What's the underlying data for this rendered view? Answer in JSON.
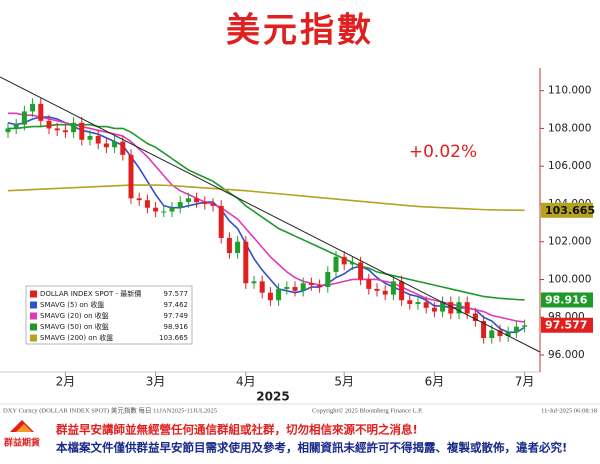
{
  "chart_data": {
    "type": "candlestick",
    "title": "美元指數",
    "annotation": "+0.02%",
    "year_label": "2025",
    "categories": [
      null,
      null,
      null,
      null,
      null,
      null,
      null,
      "2月",
      null,
      null,
      null,
      null,
      null,
      null,
      null,
      null,
      null,
      null,
      "3月",
      null,
      null,
      null,
      null,
      null,
      null,
      null,
      null,
      null,
      null,
      "4月",
      null,
      null,
      null,
      null,
      null,
      null,
      null,
      null,
      null,
      null,
      null,
      "5月",
      null,
      null,
      null,
      null,
      null,
      null,
      null,
      null,
      null,
      null,
      "6月",
      null,
      null,
      null,
      null,
      null,
      null,
      null,
      null,
      null,
      null,
      "7月"
    ],
    "price": {
      "name": "DOLLAR INDEX SPOT - 最新價",
      "color": "#e0201f",
      "up_color": "#1e9e2a",
      "down_color": "#e0201f",
      "open": [
        107.8,
        108.0,
        108.2,
        108.9,
        109.3,
        108.4,
        108.0,
        107.9,
        107.8,
        108.3,
        107.4,
        107.6,
        107.2,
        107.0,
        107.3,
        106.6,
        104.3,
        104.2,
        103.8,
        103.6,
        103.6,
        103.8,
        104.1,
        104.3,
        104.1,
        104.0,
        103.9,
        102.2,
        101.4,
        102.0,
        99.8,
        99.9,
        99.3,
        98.9,
        99.5,
        99.6,
        99.4,
        99.8,
        99.7,
        99.6,
        100.4,
        101.2,
        100.8,
        100.9,
        100.0,
        99.5,
        99.4,
        99.2,
        99.9,
        98.9,
        98.7,
        98.8,
        98.5,
        98.3,
        98.8,
        98.2,
        98.8,
        98.2,
        97.8,
        96.9,
        97.3,
        97.0,
        97.2,
        97.5
      ],
      "high": [
        108.3,
        108.5,
        109.2,
        109.6,
        109.6,
        108.7,
        108.3,
        108.2,
        108.6,
        108.6,
        107.9,
        107.9,
        107.5,
        107.6,
        107.6,
        106.9,
        104.6,
        104.5,
        104.1,
        103.9,
        104.1,
        104.4,
        104.6,
        104.6,
        104.4,
        104.3,
        104.2,
        102.5,
        102.3,
        102.3,
        100.2,
        100.2,
        99.6,
        99.8,
        99.9,
        99.9,
        100.1,
        100.1,
        100.0,
        100.7,
        101.5,
        101.5,
        101.2,
        101.2,
        100.3,
        99.8,
        99.7,
        100.2,
        100.2,
        99.2,
        99.1,
        99.1,
        98.8,
        99.1,
        99.1,
        99.1,
        99.1,
        98.5,
        98.1,
        97.6,
        97.6,
        97.5,
        97.8,
        97.88
      ],
      "low": [
        107.5,
        107.7,
        107.9,
        108.6,
        108.1,
        107.7,
        107.6,
        107.5,
        107.5,
        107.1,
        107.1,
        106.9,
        106.7,
        106.7,
        106.3,
        104.0,
        103.9,
        103.5,
        103.3,
        103.3,
        103.3,
        103.5,
        103.8,
        103.8,
        103.7,
        103.6,
        101.9,
        101.1,
        101.1,
        99.5,
        99.5,
        99.0,
        98.6,
        98.6,
        99.2,
        99.1,
        99.1,
        99.4,
        99.3,
        99.3,
        100.1,
        100.5,
        100.5,
        99.7,
        99.2,
        99.1,
        98.9,
        98.9,
        98.6,
        98.4,
        98.4,
        98.2,
        98.0,
        98.0,
        97.9,
        97.9,
        97.9,
        97.5,
        96.6,
        96.6,
        96.7,
        96.7,
        96.9,
        97.2
      ],
      "close": [
        108.0,
        108.2,
        108.9,
        109.3,
        108.4,
        108.0,
        107.9,
        107.8,
        108.3,
        107.4,
        107.6,
        107.2,
        107.0,
        107.3,
        106.6,
        104.3,
        104.2,
        103.8,
        103.6,
        103.6,
        103.8,
        104.1,
        104.3,
        104.1,
        104.0,
        103.9,
        102.2,
        101.4,
        102.0,
        99.8,
        99.9,
        99.3,
        98.9,
        99.5,
        99.6,
        99.4,
        99.8,
        99.7,
        99.6,
        100.4,
        101.2,
        100.8,
        100.9,
        100.0,
        99.5,
        99.4,
        99.2,
        99.9,
        98.9,
        98.7,
        98.8,
        98.5,
        98.3,
        98.8,
        98.2,
        98.8,
        98.2,
        97.8,
        96.9,
        97.3,
        97.0,
        97.2,
        97.5,
        97.577
      ]
    },
    "series": [
      {
        "name": "SMAVG (5)  on 收盤",
        "color": "#2f4fd0",
        "values": [
          108.3,
          108.2,
          108.3,
          108.5,
          108.6,
          108.6,
          108.5,
          108.3,
          108.1,
          107.9,
          107.8,
          107.7,
          107.5,
          107.3,
          107.1,
          106.5,
          105.9,
          105.2,
          104.5,
          103.9,
          103.8,
          103.8,
          103.9,
          104.0,
          104.1,
          104.1,
          103.7,
          103.1,
          102.7,
          101.9,
          101.1,
          100.5,
          100.0,
          99.5,
          99.4,
          99.3,
          99.4,
          99.6,
          99.6,
          99.8,
          100.1,
          100.3,
          100.6,
          100.7,
          100.5,
          100.1,
          99.8,
          99.6,
          99.4,
          99.2,
          99.1,
          98.9,
          98.6,
          98.6,
          98.5,
          98.5,
          98.5,
          98.4,
          98.0,
          97.8,
          97.4,
          97.2,
          97.2,
          97.462
        ]
      },
      {
        "name": "SMAVG (20) on 收盤",
        "color": "#e03ab8",
        "values": [
          108.8,
          108.8,
          108.7,
          108.7,
          108.6,
          108.5,
          108.4,
          108.3,
          108.2,
          108.1,
          108.0,
          107.9,
          107.8,
          107.7,
          107.6,
          107.3,
          106.9,
          106.5,
          106.0,
          105.5,
          105.0,
          104.7,
          104.5,
          104.3,
          104.1,
          104.0,
          103.8,
          103.5,
          103.2,
          102.7,
          102.2,
          101.7,
          101.2,
          100.8,
          100.4,
          100.1,
          99.9,
          99.8,
          99.7,
          99.7,
          99.8,
          99.9,
          100.0,
          100.0,
          100.0,
          100.0,
          99.9,
          99.8,
          99.6,
          99.4,
          99.2,
          99.0,
          98.9,
          98.8,
          98.7,
          98.6,
          98.5,
          98.4,
          98.3,
          98.1,
          98.0,
          97.9,
          97.8,
          97.749
        ]
      },
      {
        "name": "SMAVG (50) on 收盤",
        "color": "#1f9a2a",
        "values": [
          108.0,
          108.0,
          108.05,
          108.1,
          108.1,
          108.15,
          108.2,
          108.2,
          108.2,
          108.2,
          108.2,
          108.1,
          108.1,
          108.0,
          108.0,
          107.8,
          107.5,
          107.2,
          107.0,
          106.7,
          106.4,
          106.1,
          105.8,
          105.6,
          105.4,
          105.2,
          104.9,
          104.6,
          104.3,
          103.9,
          103.6,
          103.3,
          103.0,
          102.7,
          102.5,
          102.3,
          102.1,
          101.9,
          101.7,
          101.5,
          101.3,
          101.1,
          100.9,
          100.7,
          100.6,
          100.4,
          100.3,
          100.2,
          100.1,
          100.0,
          99.9,
          99.8,
          99.7,
          99.6,
          99.5,
          99.4,
          99.3,
          99.2,
          99.1,
          99.05,
          99.0,
          98.97,
          98.94,
          98.916
        ]
      },
      {
        "name": "SMAVG (200) on 收盤",
        "color": "#b5a21e",
        "values": [
          104.7,
          104.72,
          104.74,
          104.76,
          104.78,
          104.8,
          104.82,
          104.84,
          104.86,
          104.88,
          104.9,
          104.92,
          104.94,
          104.96,
          104.98,
          105.0,
          105.0,
          105.0,
          105.0,
          104.99,
          104.97,
          104.94,
          104.91,
          104.88,
          104.85,
          104.82,
          104.79,
          104.76,
          104.73,
          104.7,
          104.66,
          104.62,
          104.58,
          104.54,
          104.5,
          104.46,
          104.42,
          104.38,
          104.34,
          104.3,
          104.26,
          104.22,
          104.18,
          104.14,
          104.1,
          104.06,
          104.02,
          103.98,
          103.94,
          103.9,
          103.87,
          103.84,
          103.82,
          103.8,
          103.78,
          103.76,
          103.74,
          103.72,
          103.7,
          103.69,
          103.68,
          103.675,
          103.67,
          103.665
        ]
      }
    ],
    "value_tags": [
      3,
      2,
      "price"
    ],
    "ylim": [
      95.1,
      111.2
    ],
    "yticks": [
      {
        "value": 96,
        "label": "96.000"
      },
      {
        "value": 98,
        "label": "98.000"
      },
      {
        "value": 100,
        "label": "100.000"
      },
      {
        "value": 102,
        "label": "102.000"
      },
      {
        "value": 104,
        "label": "104.000"
      },
      {
        "value": 106,
        "label": "106.000"
      },
      {
        "value": 108,
        "label": "108.000"
      },
      {
        "value": 110,
        "label": "110.000"
      }
    ],
    "grid": false,
    "legend": "bottom-left"
  },
  "footer": {
    "source": "DXY Curncy (DOLLAR INDEX SPOT) 美元指數  每日 11JAN2025-11JUL2025",
    "copyright": "Copyright© 2025 Bloomberg Finance L.P.",
    "timestamp": "11-Jul-2025 06:08:18"
  },
  "disclaimer": {
    "logo": "群益期貨",
    "line1": "群益早安講師並無經營任何通信群組或社群，切勿相信來源不明之消息!",
    "line2": "本檔案文件僅供群益早安節目需求使用及參考，相關資訊未經許可不得揭露、複製或散佈，違者必究!"
  }
}
